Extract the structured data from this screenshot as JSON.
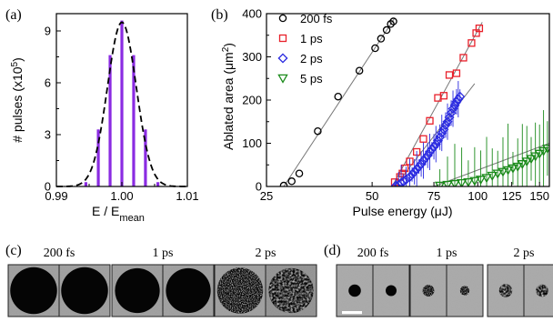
{
  "chart_data": [
    {
      "panel": "(a)",
      "type": "bar",
      "xlabel": "E / E",
      "xlabel_sub": "mean",
      "ylabel": "# pulses (x10",
      "ylabel_sup": "5",
      "ylabel_end": ")",
      "xlim": [
        0.99,
        1.01
      ],
      "ylim": [
        0,
        10
      ],
      "xticks": [
        "0.99",
        "1.00",
        "1.01"
      ],
      "yticks": [
        "0",
        "3",
        "6",
        "9"
      ],
      "x": [
        0.9945,
        0.9964,
        0.9982,
        1.0,
        1.0018,
        1.0036,
        1.0055
      ],
      "values": [
        0.25,
        3.3,
        7.6,
        9.6,
        7.6,
        3.3,
        0.25
      ],
      "bar_color": "#8a2be2",
      "fit": {
        "style": "dashed",
        "type": "gaussian",
        "mean": 1.0,
        "sigma": 0.0022,
        "peak": 9.5
      }
    },
    {
      "panel": "(b)",
      "type": "scatter",
      "xlabel": "Pulse energy (μJ)",
      "ylabel": "Ablated area (μm",
      "ylabel_sup": "2",
      "ylabel_end": ")",
      "xscale": "log",
      "xlim": [
        25,
        160
      ],
      "ylim": [
        0,
        400
      ],
      "xticks": [
        {
          "value": 25,
          "label": "25"
        },
        {
          "value": 50,
          "label": "50"
        },
        {
          "value": 75,
          "label": "75"
        },
        {
          "value": 100,
          "label": "100"
        },
        {
          "value": 125,
          "label": "125"
        },
        {
          "value": 150,
          "label": "150"
        }
      ],
      "yticks": [
        "0",
        "100",
        "200",
        "300",
        "400"
      ],
      "legend": "top-left",
      "series": [
        {
          "name": "200 fs",
          "marker": "circle",
          "color": "#000000",
          "points": [
            [
              28,
              2
            ],
            [
              29.5,
              12
            ],
            [
              31,
              30
            ],
            [
              35,
              128
            ],
            [
              40,
              208
            ],
            [
              46,
              268
            ],
            [
              51,
              320
            ],
            [
              53,
              342
            ],
            [
              55,
              362
            ],
            [
              56.5,
              376
            ],
            [
              57.5,
              382
            ]
          ],
          "fit": [
            [
              28,
              0
            ],
            [
              58,
              390
            ]
          ]
        },
        {
          "name": "1 ps",
          "marker": "square",
          "color": "#e8202a",
          "points": [
            [
              58,
              10
            ],
            [
              60,
              22
            ],
            [
              61,
              30
            ],
            [
              62,
              42
            ],
            [
              64,
              58
            ],
            [
              67,
              80
            ],
            [
              70,
              110
            ],
            [
              73,
              152
            ],
            [
              77,
              205
            ],
            [
              80,
              210
            ],
            [
              83,
              258
            ],
            [
              87,
              262
            ],
            [
              91,
              298
            ],
            [
              96,
              332
            ],
            [
              99,
              355
            ],
            [
              101,
              366
            ]
          ],
          "fit": [
            [
              57,
              0
            ],
            [
              103,
              380
            ]
          ]
        },
        {
          "name": "2 ps",
          "marker": "diamond",
          "color": "#2a2ae0",
          "points": [
            [
              58.5,
              2
            ],
            [
              59.5,
              4
            ],
            [
              60.5,
              8
            ],
            [
              61.5,
              12
            ],
            [
              62.5,
              16
            ],
            [
              64,
              22
            ],
            [
              65,
              28
            ],
            [
              66,
              34
            ],
            [
              67,
              40
            ],
            [
              68,
              46
            ],
            [
              69,
              52
            ],
            [
              70,
              60
            ],
            [
              71,
              66
            ],
            [
              72,
              72
            ],
            [
              73,
              80
            ],
            [
              74,
              86
            ],
            [
              75,
              92
            ],
            [
              76,
              98
            ],
            [
              77,
              106
            ],
            [
              78,
              114
            ],
            [
              79,
              124
            ],
            [
              80,
              132
            ],
            [
              81,
              142
            ],
            [
              82,
              150
            ],
            [
              83,
              160
            ],
            [
              84,
              170
            ],
            [
              85,
              180
            ],
            [
              86,
              188
            ],
            [
              87,
              196
            ],
            [
              88,
              202
            ],
            [
              89,
              208
            ]
          ],
          "error_bar_color": "#2a2ae0",
          "fit": [
            [
              58,
              0
            ],
            [
              98,
              238
            ]
          ]
        },
        {
          "name": "5 ps",
          "marker": "triangle-down",
          "color": "#1a8a1a",
          "points": [
            [
              78,
              2
            ],
            [
              82,
              4
            ],
            [
              86,
              6
            ],
            [
              90,
              8
            ],
            [
              94,
              10
            ],
            [
              98,
              13
            ],
            [
              102,
              16
            ],
            [
              106,
              20
            ],
            [
              110,
              25
            ],
            [
              114,
              30
            ],
            [
              118,
              34
            ],
            [
              122,
              38
            ],
            [
              126,
              42
            ],
            [
              130,
              46
            ],
            [
              134,
              52
            ],
            [
              138,
              58
            ],
            [
              142,
              64
            ],
            [
              146,
              70
            ],
            [
              150,
              76
            ],
            [
              154,
              82
            ],
            [
              158,
              88
            ]
          ],
          "error_bar_color": "#1a8a1a",
          "fit": [
            [
              75,
              0
            ],
            [
              160,
              100
            ]
          ]
        }
      ]
    }
  ],
  "micrographs": [
    {
      "panel": "(c)",
      "groups": [
        {
          "label": "200 fs",
          "tiles": [
            {
              "spot": 0.92,
              "bg": "#9a9a9a",
              "pattern": "solid"
            },
            {
              "spot": 0.92,
              "bg": "#9a9a9a",
              "pattern": "solid"
            }
          ]
        },
        {
          "label": "1 ps",
          "tiles": [
            {
              "spot": 0.88,
              "bg": "#9a9a9a",
              "pattern": "solid"
            },
            {
              "spot": 0.88,
              "bg": "#9a9a9a",
              "pattern": "solid"
            }
          ]
        },
        {
          "label": "2 ps",
          "tiles": [
            {
              "spot": 0.9,
              "bg": "#9a9a9a",
              "pattern": "speckled"
            },
            {
              "spot": 0.88,
              "bg": "#8c8c8c",
              "pattern": "mottled"
            }
          ]
        }
      ]
    },
    {
      "panel": "(d)",
      "groups": [
        {
          "label": "200 fs",
          "tiles": [
            {
              "spot": 0.34,
              "bg": "#a6a6a6",
              "pattern": "solid"
            },
            {
              "spot": 0.3,
              "bg": "#a6a6a6",
              "pattern": "solid"
            }
          ]
        },
        {
          "label": "1 ps",
          "tiles": [
            {
              "spot": 0.32,
              "bg": "#a6a6a6",
              "pattern": "speckled"
            },
            {
              "spot": 0.26,
              "bg": "#a6a6a6",
              "pattern": "speckled"
            }
          ]
        },
        {
          "label": "2 ps",
          "tiles": [
            {
              "spot": 0.36,
              "bg": "#a6a6a6",
              "pattern": "mottled"
            },
            {
              "spot": 0.34,
              "bg": "#a6a6a6",
              "pattern": "mottled"
            }
          ]
        }
      ]
    }
  ]
}
